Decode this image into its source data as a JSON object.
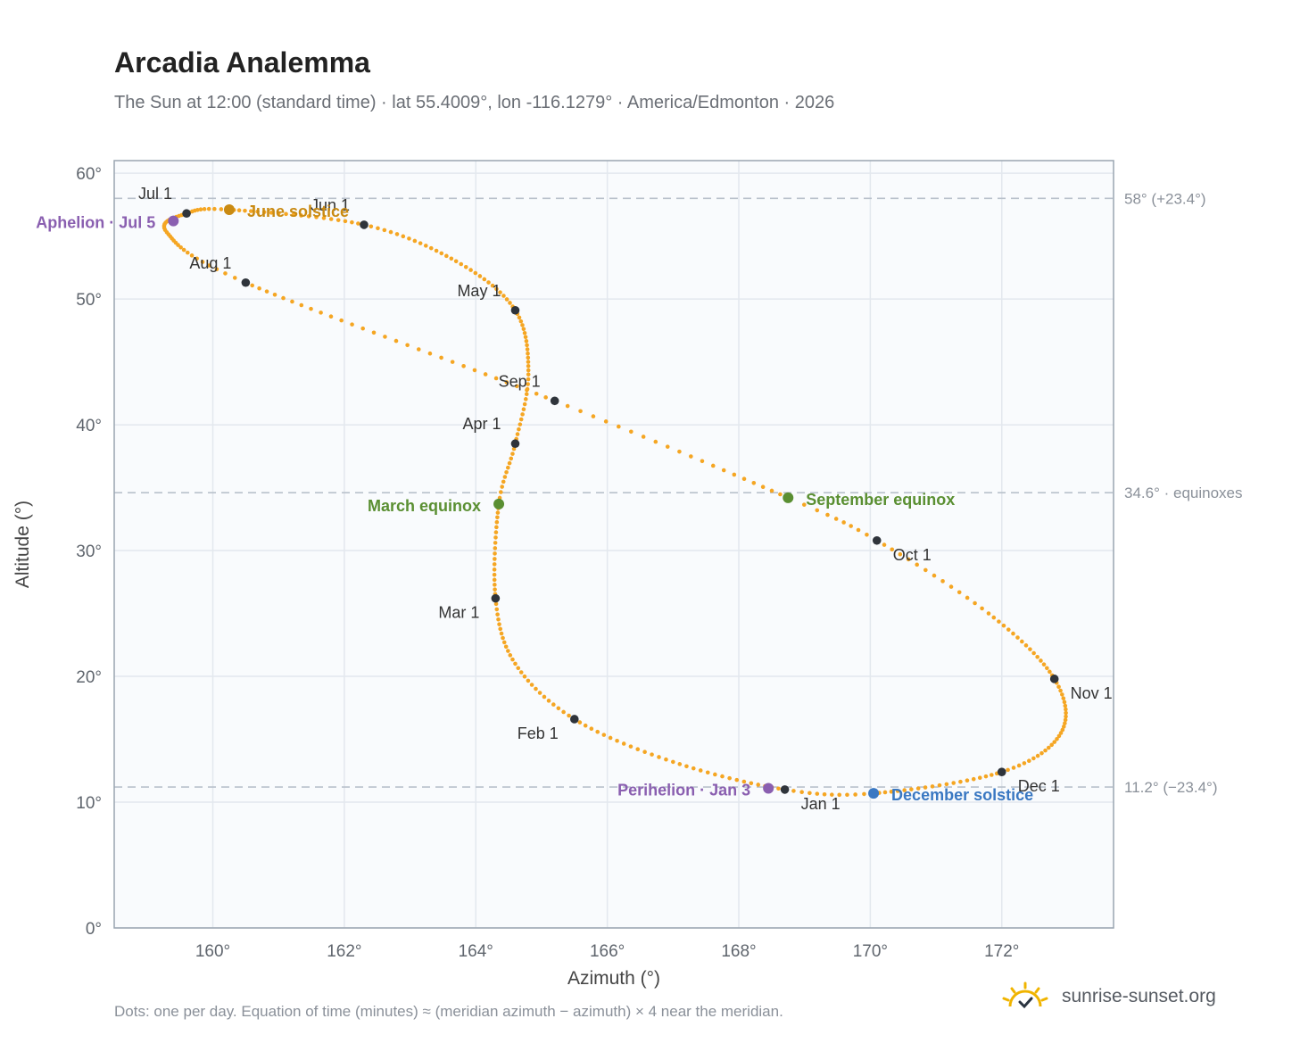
{
  "header": {
    "title": "Arcadia Analemma",
    "subtitle": "The Sun at 12:00 (standard time) · lat 55.4009°, lon -116.1279° · America/Edmonton · 2026"
  },
  "footer": {
    "note": "Dots: one per day. Equation of time (minutes) ≈ (meridian azimuth − azimuth) × 4 near the meridian.",
    "brand": "sunrise-sunset.org",
    "brand_icon": "sun-logo-icon"
  },
  "colors": {
    "path": "#f5a623",
    "month_marker": "#2f343b",
    "solstice_june": "#c98a12",
    "solstice_december": "#3a78c2",
    "equinox": "#5a8f32",
    "apsis": "#8a5fb0",
    "reference_line": "#b9c1cb",
    "plot_background": "#f9fbfd",
    "grid": "#e3e8ee"
  },
  "chart_data": {
    "type": "scatter",
    "title": "Arcadia Analemma",
    "xlabel": "Azimuth (°)",
    "ylabel": "Altitude (°)",
    "xlim": [
      158.5,
      173.7
    ],
    "ylim": [
      0,
      61
    ],
    "grid": true,
    "x_ticks": [
      160,
      162,
      164,
      166,
      168,
      170,
      172
    ],
    "x_tick_labels": [
      "160°",
      "162°",
      "164°",
      "166°",
      "168°",
      "170°",
      "172°"
    ],
    "y_ticks": [
      0,
      10,
      20,
      30,
      40,
      50,
      60
    ],
    "y_tick_labels": [
      "0°",
      "10°",
      "20°",
      "30°",
      "40°",
      "50°",
      "60°"
    ],
    "reference_lines": [
      {
        "y": 58.0,
        "label": "58° (+23.4°)"
      },
      {
        "y": 34.6,
        "label": "34.6° · equinoxes"
      },
      {
        "y": 11.2,
        "label": "11.2° (−23.4°)"
      }
    ],
    "months": [
      {
        "label": "Jan 1",
        "azimuth": 168.7,
        "altitude": 11.0,
        "label_pos": "below-right"
      },
      {
        "label": "Feb 1",
        "azimuth": 165.5,
        "altitude": 16.6,
        "label_pos": "below-left"
      },
      {
        "label": "Mar 1",
        "azimuth": 164.3,
        "altitude": 26.2,
        "label_pos": "below-left"
      },
      {
        "label": "Apr 1",
        "azimuth": 164.6,
        "altitude": 38.5,
        "label_pos": "above-left"
      },
      {
        "label": "May 1",
        "azimuth": 164.6,
        "altitude": 49.1,
        "label_pos": "above-left"
      },
      {
        "label": "Jun 1",
        "azimuth": 162.3,
        "altitude": 55.9,
        "label_pos": "above-left"
      },
      {
        "label": "Jul 1",
        "azimuth": 159.6,
        "altitude": 56.8,
        "label_pos": "above-left"
      },
      {
        "label": "Aug 1",
        "azimuth": 160.5,
        "altitude": 51.3,
        "label_pos": "above-left"
      },
      {
        "label": "Sep 1",
        "azimuth": 165.2,
        "altitude": 41.9,
        "label_pos": "above-left"
      },
      {
        "label": "Oct 1",
        "azimuth": 170.1,
        "altitude": 30.8,
        "label_pos": "below-right"
      },
      {
        "label": "Nov 1",
        "azimuth": 172.8,
        "altitude": 19.8,
        "label_pos": "below-right"
      },
      {
        "label": "Dec 1",
        "azimuth": 172.0,
        "altitude": 12.4,
        "label_pos": "below-right"
      }
    ],
    "events": [
      {
        "label": "June solstice",
        "azimuth": 160.25,
        "altitude": 57.1,
        "color": "#c98a12",
        "label_pos": "right"
      },
      {
        "label": "December solstice",
        "azimuth": 170.05,
        "altitude": 10.7,
        "color": "#3a78c2",
        "label_pos": "right"
      },
      {
        "label": "March equinox",
        "azimuth": 164.35,
        "altitude": 33.7,
        "color": "#5a8f32",
        "label_pos": "left"
      },
      {
        "label": "September equinox",
        "azimuth": 168.75,
        "altitude": 34.2,
        "color": "#5a8f32",
        "label_pos": "right"
      },
      {
        "label": "Aphelion · Jul 5",
        "azimuth": 159.4,
        "altitude": 56.2,
        "color": "#8a5fb0",
        "label_pos": "left"
      },
      {
        "label": "Perihelion · Jan 3",
        "azimuth": 168.45,
        "altitude": 11.1,
        "color": "#8a5fb0",
        "label_pos": "left"
      }
    ],
    "path_knots": [
      {
        "day": 1,
        "azimuth": 168.7,
        "altitude": 11.0
      },
      {
        "day": 17,
        "azimuth": 167.0,
        "altitude": 13.2
      },
      {
        "day": 32,
        "azimuth": 165.5,
        "altitude": 16.6
      },
      {
        "day": 46,
        "azimuth": 164.6,
        "altitude": 21.0
      },
      {
        "day": 60,
        "azimuth": 164.3,
        "altitude": 26.2
      },
      {
        "day": 79,
        "azimuth": 164.35,
        "altitude": 33.7
      },
      {
        "day": 91,
        "azimuth": 164.6,
        "altitude": 38.5
      },
      {
        "day": 105,
        "azimuth": 164.8,
        "altitude": 44.0
      },
      {
        "day": 121,
        "azimuth": 164.6,
        "altitude": 49.1
      },
      {
        "day": 136,
        "azimuth": 163.7,
        "altitude": 53.0
      },
      {
        "day": 152,
        "azimuth": 162.3,
        "altitude": 55.9
      },
      {
        "day": 172,
        "azimuth": 160.25,
        "altitude": 57.1
      },
      {
        "day": 182,
        "azimuth": 159.6,
        "altitude": 56.8
      },
      {
        "day": 196,
        "azimuth": 159.3,
        "altitude": 55.3
      },
      {
        "day": 213,
        "azimuth": 160.5,
        "altitude": 51.3
      },
      {
        "day": 244,
        "azimuth": 165.2,
        "altitude": 41.9
      },
      {
        "day": 265,
        "azimuth": 168.75,
        "altitude": 34.2
      },
      {
        "day": 274,
        "azimuth": 170.1,
        "altitude": 30.8
      },
      {
        "day": 288,
        "azimuth": 171.8,
        "altitude": 25.0
      },
      {
        "day": 305,
        "azimuth": 172.8,
        "altitude": 19.8
      },
      {
        "day": 320,
        "azimuth": 172.9,
        "altitude": 15.5
      },
      {
        "day": 335,
        "azimuth": 172.0,
        "altitude": 12.4
      },
      {
        "day": 355,
        "azimuth": 170.05,
        "altitude": 10.7
      },
      {
        "day": 366,
        "azimuth": 168.7,
        "altitude": 11.0
      }
    ]
  }
}
